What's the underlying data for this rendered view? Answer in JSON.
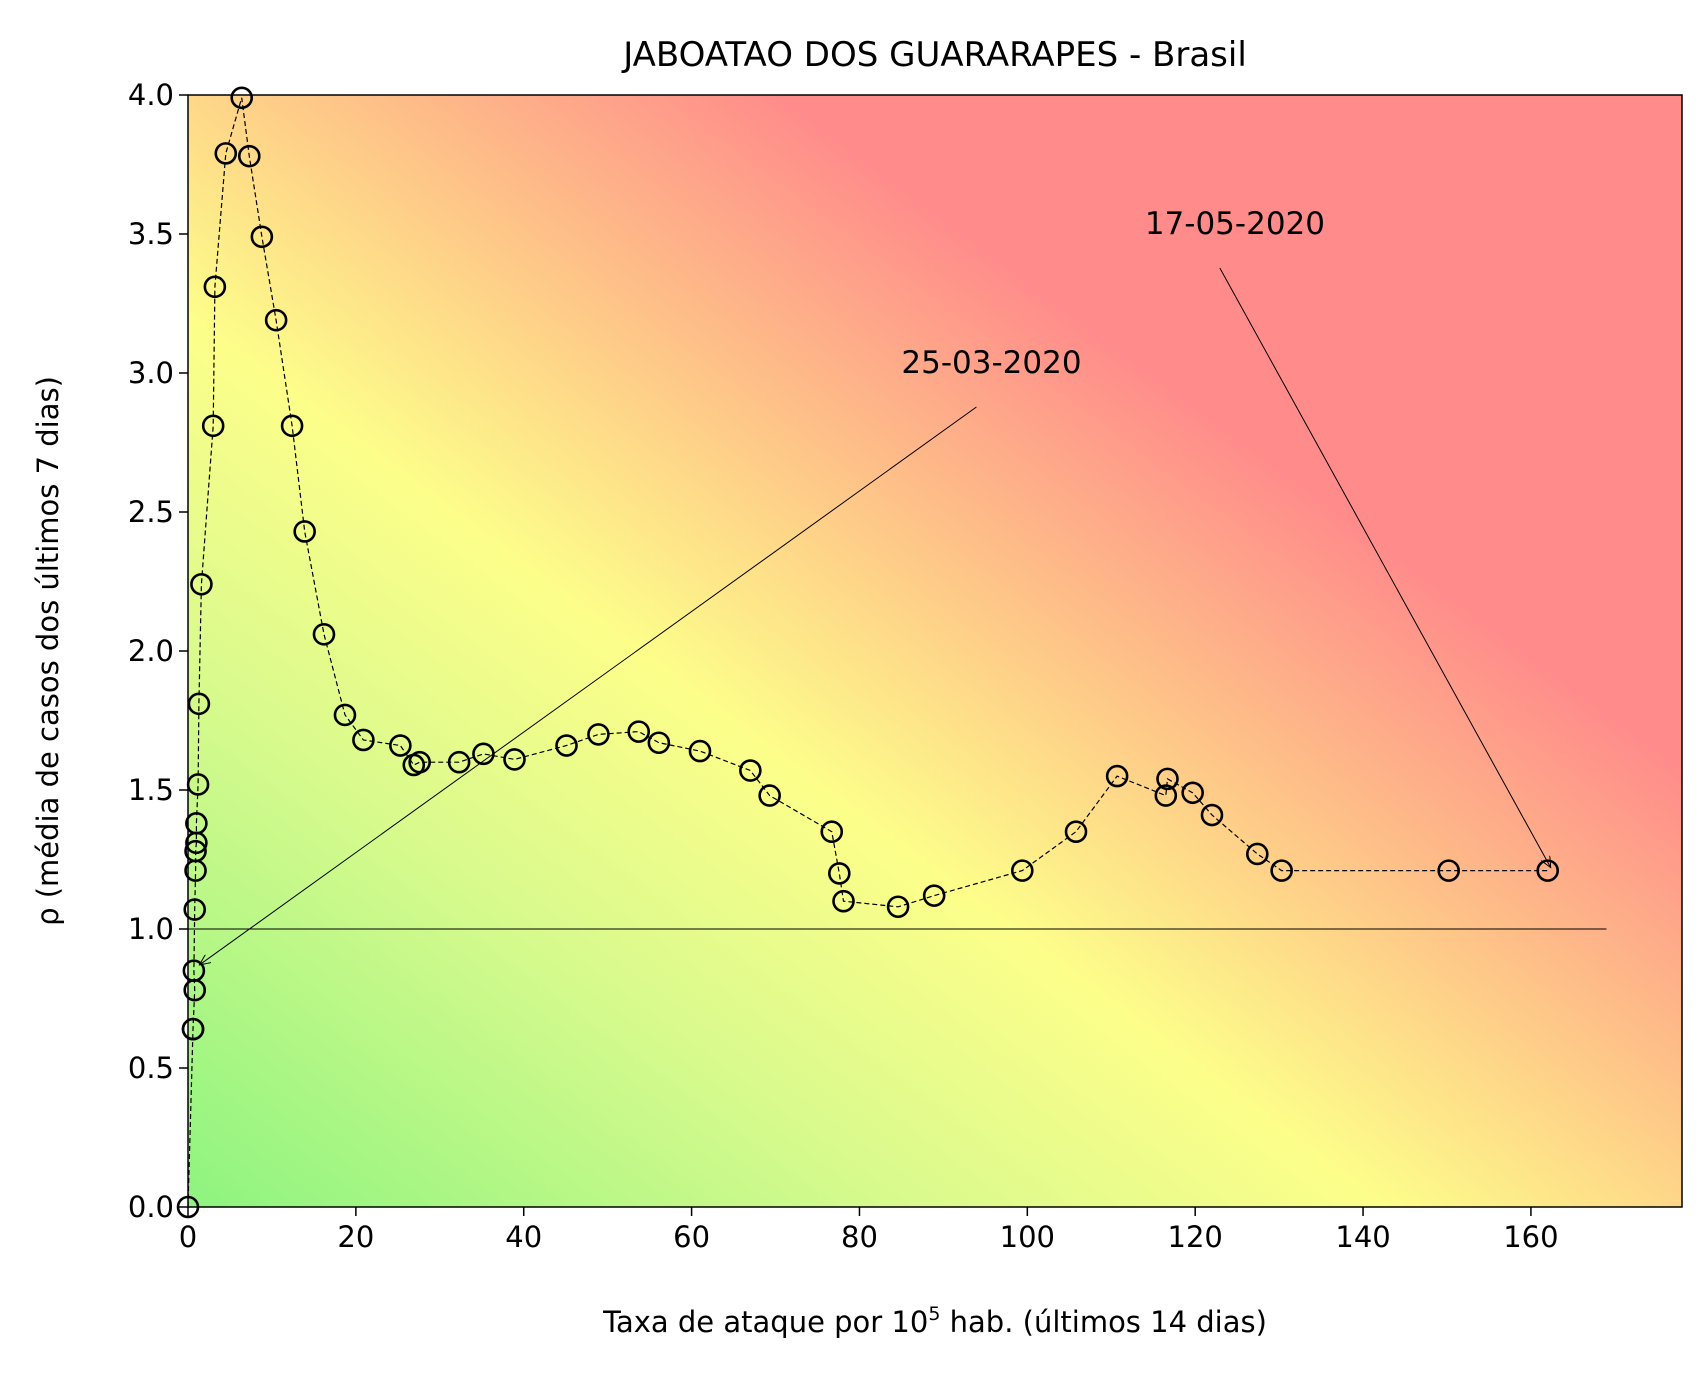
{
  "chart_data": {
    "type": "scatter",
    "title": "JABOATAO DOS GUARARAPES - Brasil",
    "xlabel_prefix": "Taxa de ataque por 10",
    "xlabel_sup": "5",
    "xlabel_suffix": " hab. (últimos 14 dias)",
    "ylabel": "ρ (média de casos dos últimos 7 dias)",
    "xlim": [
      0,
      178
    ],
    "ylim": [
      0,
      4.0
    ],
    "xticks": [
      "0",
      "20",
      "40",
      "60",
      "80",
      "100",
      "120",
      "140",
      "160"
    ],
    "yticks": [
      "0.0",
      "0.5",
      "1.0",
      "1.5",
      "2.0",
      "2.5",
      "3.0",
      "3.5",
      "4.0"
    ],
    "grid": false,
    "background": "gradient green (low) - yellow - red (high risk)",
    "reference_line": {
      "y": 1.0,
      "x_range": [
        0,
        169
      ]
    },
    "series": [
      {
        "marker": "open-circle",
        "line": "dashed",
        "x": [
          0.0,
          0.6,
          0.6,
          0.8,
          0.7,
          0.8,
          0.9,
          0.9,
          1.0,
          1.0,
          1.2,
          1.3,
          1.6,
          3.0,
          3.2,
          4.5,
          6.4,
          7.3,
          8.8,
          10.5,
          12.4,
          13.9,
          16.2,
          18.7,
          20.9,
          25.3,
          26.9,
          27.6,
          32.3,
          35.2,
          38.9,
          45.1,
          48.9,
          53.7,
          56.1,
          61.0,
          67.0,
          69.3,
          76.7,
          77.6,
          78.1,
          84.6,
          88.9,
          99.4,
          105.8,
          110.7,
          116.5,
          116.7,
          119.7,
          122.0,
          127.4,
          130.3,
          150.2,
          162.0
        ],
        "y": [
          0.0,
          0.64,
          0.64,
          0.78,
          0.85,
          1.07,
          1.21,
          1.28,
          1.31,
          1.38,
          1.52,
          1.81,
          2.24,
          2.81,
          3.31,
          3.79,
          3.99,
          3.78,
          3.49,
          3.19,
          2.81,
          2.43,
          2.06,
          1.77,
          1.68,
          1.66,
          1.59,
          1.6,
          1.6,
          1.63,
          1.61,
          1.66,
          1.7,
          1.71,
          1.67,
          1.64,
          1.57,
          1.48,
          1.35,
          1.2,
          1.1,
          1.08,
          1.12,
          1.21,
          1.35,
          1.55,
          1.48,
          1.54,
          1.49,
          1.41,
          1.27,
          1.21,
          1.21,
          1.21
        ]
      }
    ],
    "annotations": [
      {
        "text": "25-03-2020",
        "point_x": 1.0,
        "point_y": 0.86,
        "text_x": 85,
        "text_y": 3.0
      },
      {
        "text": "17-05-2020",
        "point_x": 162.0,
        "point_y": 1.21,
        "text_x": 114,
        "text_y": 3.5
      }
    ]
  }
}
